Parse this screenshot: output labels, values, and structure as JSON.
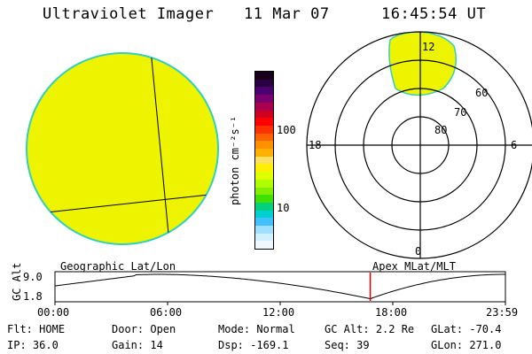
{
  "header": {
    "instrument": "Ultraviolet Imager",
    "date": "11 Mar 07",
    "time": "16:45:54 UT"
  },
  "colorbar": {
    "label": "photon cm⁻²s⁻¹",
    "ticks": [
      "100",
      "10"
    ],
    "colors": [
      "#1a001a",
      "#2b0040",
      "#4a0070",
      "#7a0070",
      "#aa0050",
      "#d00020",
      "#ff0000",
      "#ff3000",
      "#ff6000",
      "#ff9000",
      "#ffb000",
      "#ffe060",
      "#fff000",
      "#e0ff00",
      "#b0ff00",
      "#80f000",
      "#40e000",
      "#00d080",
      "#00d0d0",
      "#40c0ff",
      "#a0e0ff",
      "#d0f0ff",
      "#f0f8ff"
    ]
  },
  "polar": {
    "mlt_labels": {
      "top": "12",
      "left": "18",
      "right": "6",
      "bottom": "0"
    },
    "lat_labels": [
      "60",
      "70",
      "80"
    ]
  },
  "labels": {
    "left_panel": "Geographic Lat/Lon",
    "right_panel": "Apex MLat/MLT"
  },
  "timeline": {
    "ylabel": "GC Alt",
    "yticks": [
      "9.0",
      "1.8"
    ],
    "xticks": [
      "00:00",
      "06:00",
      "12:00",
      "18:00",
      "23:59"
    ],
    "current_time_fraction": 0.7
  },
  "info": {
    "row1": [
      {
        "label": "Flt:",
        "value": "HOME"
      },
      {
        "label": "Door:",
        "value": "Open"
      },
      {
        "label": "Mode:",
        "value": "Normal"
      },
      {
        "label": "GC Alt:",
        "value": "2.2 Re"
      },
      {
        "label": "GLat:",
        "value": "-70.4"
      }
    ],
    "row2": [
      {
        "label": "IP:",
        "value": "36.0"
      },
      {
        "label": "Gain:",
        "value": "14"
      },
      {
        "label": "Dsp:",
        "value": "-169.1"
      },
      {
        "label": "Seq:",
        "value": "39"
      },
      {
        "label": "GLon:",
        "value": "271.0"
      }
    ]
  }
}
